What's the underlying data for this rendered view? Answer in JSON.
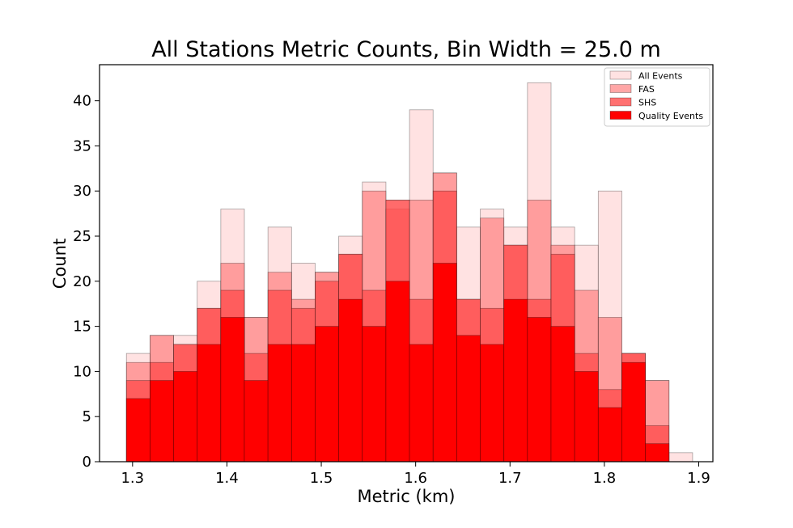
{
  "chart_data": {
    "type": "bar",
    "title": "All Stations Metric Counts, Bin Width = 25.0 m",
    "xlabel": "Metric (km)",
    "ylabel": "Count",
    "xlim": [
      1.265,
      1.915
    ],
    "ylim": [
      0,
      44
    ],
    "x_ticks": [
      1.3,
      1.4,
      1.5,
      1.6,
      1.7,
      1.8,
      1.9
    ],
    "x_tick_labels": [
      "1.3",
      "1.4",
      "1.5",
      "1.6",
      "1.7",
      "1.8",
      "1.9"
    ],
    "y_ticks": [
      0,
      5,
      10,
      15,
      20,
      25,
      30,
      35,
      40
    ],
    "y_tick_labels": [
      "0",
      "5",
      "10",
      "15",
      "20",
      "25",
      "30",
      "35",
      "40"
    ],
    "bin_width_km": 0.025,
    "bin_edges": [
      1.2935,
      1.3185,
      1.3435,
      1.3685,
      1.3935,
      1.4185,
      1.4435,
      1.4685,
      1.4935,
      1.5185,
      1.5435,
      1.5685,
      1.5935,
      1.6185,
      1.6435,
      1.6685,
      1.6935,
      1.7185,
      1.7435,
      1.7685,
      1.7935,
      1.8185,
      1.8435,
      1.8685,
      1.8935
    ],
    "legend_position": "top-right",
    "grid": false,
    "series": [
      {
        "name": "All Events",
        "color": "#ffd6d6",
        "opacity": 0.7,
        "values": [
          12,
          14,
          14,
          20,
          28,
          16,
          26,
          22,
          21,
          25,
          31,
          29,
          39,
          32,
          26,
          28,
          26,
          42,
          26,
          24,
          30,
          12,
          9,
          1
        ]
      },
      {
        "name": "FAS",
        "color": "#ff8080",
        "opacity": 0.7,
        "values": [
          11,
          14,
          13,
          17,
          22,
          16,
          21,
          18,
          21,
          23,
          30,
          28,
          29,
          32,
          18,
          27,
          24,
          29,
          24,
          19,
          16,
          12,
          9,
          0
        ]
      },
      {
        "name": "SHS",
        "color": "#ff4d4d",
        "opacity": 0.8,
        "values": [
          9,
          11,
          13,
          17,
          19,
          12,
          19,
          17,
          20,
          23,
          19,
          29,
          18,
          30,
          18,
          17,
          24,
          18,
          23,
          12,
          8,
          12,
          4,
          0
        ]
      },
      {
        "name": "Quality Events",
        "color": "#ff0000",
        "opacity": 1.0,
        "values": [
          7,
          9,
          10,
          13,
          16,
          9,
          13,
          13,
          15,
          18,
          15,
          20,
          13,
          22,
          14,
          13,
          18,
          16,
          15,
          10,
          6,
          11,
          2,
          0
        ]
      }
    ]
  }
}
